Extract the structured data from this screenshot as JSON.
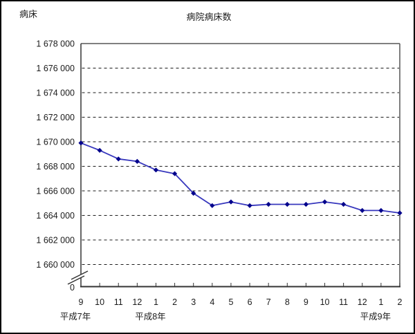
{
  "chart_data": {
    "type": "line",
    "title": "病院病床数",
    "y_unit_label": "病床",
    "categories": [
      "9",
      "10",
      "11",
      "12",
      "1",
      "2",
      "3",
      "4",
      "5",
      "6",
      "7",
      "8",
      "9",
      "10",
      "11",
      "12",
      "1",
      "2"
    ],
    "era_labels": [
      {
        "label": "平成7年",
        "index": 0
      },
      {
        "label": "平成8年",
        "index": 4
      },
      {
        "label": "平成9年",
        "index": 16
      }
    ],
    "series": [
      {
        "name": "病院病床数",
        "values": [
          1669900,
          1669300,
          1668600,
          1668400,
          1667700,
          1667400,
          1665800,
          1664800,
          1665100,
          1664800,
          1664900,
          1664900,
          1664900,
          1665100,
          1664900,
          1664400,
          1664400,
          1664200
        ]
      }
    ],
    "y_ticks": [
      {
        "label": "1 678 000",
        "value": 1678000,
        "grid": false
      },
      {
        "label": "1 676 000",
        "value": 1676000,
        "grid": true
      },
      {
        "label": "1 674 000",
        "value": 1674000,
        "grid": true
      },
      {
        "label": "1 672 000",
        "value": 1672000,
        "grid": true
      },
      {
        "label": "1 670 000",
        "value": 1670000,
        "grid": true
      },
      {
        "label": "1 668 000",
        "value": 1668000,
        "grid": true
      },
      {
        "label": "1 666 000",
        "value": 1666000,
        "grid": true
      },
      {
        "label": "1 664 000",
        "value": 1664000,
        "grid": true
      },
      {
        "label": "1 662 000",
        "value": 1662000,
        "grid": true
      },
      {
        "label": "1 660 000",
        "value": 1660000,
        "grid": true
      }
    ],
    "y_zero_label": "0",
    "ylim": [
      1660000,
      1678000
    ],
    "axis_break": true,
    "grid": "horizontal-dashed",
    "legend": "none",
    "colors": {
      "line": "#3737bd",
      "marker": "#00008b",
      "grid": "#1a1a1a",
      "axis": "#333333",
      "plot_border_top": "#808080",
      "plot_border_right": "#555555",
      "text": "#1a1a1a"
    }
  }
}
